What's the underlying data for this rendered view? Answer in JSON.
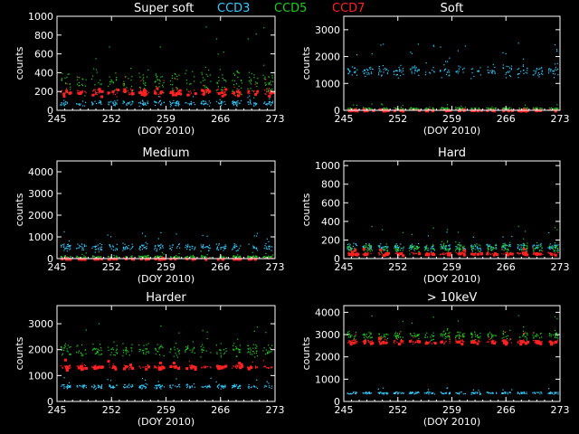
{
  "legend": {
    "title": "Super soft",
    "entries": [
      {
        "label": "CCD3",
        "color": "#33ccff"
      },
      {
        "label": "CCD5",
        "color": "#22cc22"
      },
      {
        "label": "CCD7",
        "color": "#ff2222"
      }
    ]
  },
  "chart_data": [
    {
      "type": "scatter",
      "title": "",
      "xlabel": "(DOY 2010)",
      "ylabel": "counts",
      "xlim": [
        245,
        273
      ],
      "ylim": [
        0,
        1000
      ],
      "xticks": [
        245,
        252,
        259,
        266,
        273
      ],
      "yticks": [
        0,
        200,
        400,
        600,
        800,
        1000
      ],
      "series": [
        {
          "name": "CCD3",
          "color": "#33ccff",
          "level": 80,
          "spread": 40
        },
        {
          "name": "CCD5",
          "color": "#22cc22",
          "level": 300,
          "spread": 200
        },
        {
          "name": "CCD7",
          "color": "#ff2222",
          "level": 200,
          "spread": 60
        }
      ]
    },
    {
      "type": "scatter",
      "title": "Soft",
      "xlabel": "(DOY 2010)",
      "ylabel": "counts",
      "xlim": [
        245,
        273
      ],
      "ylim": [
        0,
        3500
      ],
      "xticks": [
        245,
        252,
        259,
        266,
        273
      ],
      "yticks": [
        0,
        1000,
        2000,
        3000
      ],
      "series": [
        {
          "name": "CCD3",
          "color": "#33ccff",
          "level": 1500,
          "spread": 350
        },
        {
          "name": "CCD5",
          "color": "#22cc22",
          "level": 80,
          "spread": 60
        },
        {
          "name": "CCD7",
          "color": "#ff2222",
          "level": 30,
          "spread": 20
        }
      ]
    },
    {
      "type": "scatter",
      "title": "Medium",
      "xlabel": "(DOY 2010)",
      "ylabel": "counts",
      "xlim": [
        245,
        273
      ],
      "ylim": [
        0,
        4500
      ],
      "xticks": [
        245,
        252,
        259,
        266,
        273
      ],
      "yticks": [
        0,
        1000,
        2000,
        3000,
        4000
      ],
      "series": [
        {
          "name": "CCD3",
          "color": "#33ccff",
          "level": 550,
          "spread": 250
        },
        {
          "name": "CCD5",
          "color": "#22cc22",
          "level": 100,
          "spread": 80
        },
        {
          "name": "CCD7",
          "color": "#ff2222",
          "level": 30,
          "spread": 20
        }
      ]
    },
    {
      "type": "scatter",
      "title": "Hard",
      "xlabel": "(DOY 2010)",
      "ylabel": "counts",
      "xlim": [
        245,
        273
      ],
      "ylim": [
        0,
        1050
      ],
      "xticks": [
        245,
        252,
        259,
        266,
        273
      ],
      "yticks": [
        0,
        200,
        400,
        600,
        800,
        1000
      ],
      "series": [
        {
          "name": "CCD3",
          "color": "#33ccff",
          "level": 130,
          "spread": 60
        },
        {
          "name": "CCD5",
          "color": "#22cc22",
          "level": 120,
          "spread": 80
        },
        {
          "name": "CCD7",
          "color": "#ff2222",
          "level": 60,
          "spread": 20
        }
      ]
    },
    {
      "type": "scatter",
      "title": "Harder",
      "xlabel": "(DOY 2010)",
      "ylabel": "counts",
      "xlim": [
        245,
        273
      ],
      "ylim": [
        0,
        3700
      ],
      "xticks": [
        245,
        252,
        259,
        266,
        273
      ],
      "yticks": [
        0,
        1000,
        2000,
        3000
      ],
      "series": [
        {
          "name": "CCD3",
          "color": "#33ccff",
          "level": 600,
          "spread": 120
        },
        {
          "name": "CCD5",
          "color": "#22cc22",
          "level": 2000,
          "spread": 350
        },
        {
          "name": "CCD7",
          "color": "#ff2222",
          "level": 1350,
          "spread": 100
        }
      ]
    },
    {
      "type": "scatter",
      "title": "> 10keV",
      "xlabel": "(DOY 2010)",
      "ylabel": "counts",
      "xlim": [
        245,
        273
      ],
      "ylim": [
        0,
        4300
      ],
      "xticks": [
        245,
        252,
        259,
        266,
        273
      ],
      "yticks": [
        0,
        1000,
        2000,
        3000,
        4000
      ],
      "series": [
        {
          "name": "CCD3",
          "color": "#33ccff",
          "level": 400,
          "spread": 80
        },
        {
          "name": "CCD5",
          "color": "#22cc22",
          "level": 3000,
          "spread": 300
        },
        {
          "name": "CCD7",
          "color": "#ff2222",
          "level": 2700,
          "spread": 150
        }
      ]
    }
  ]
}
